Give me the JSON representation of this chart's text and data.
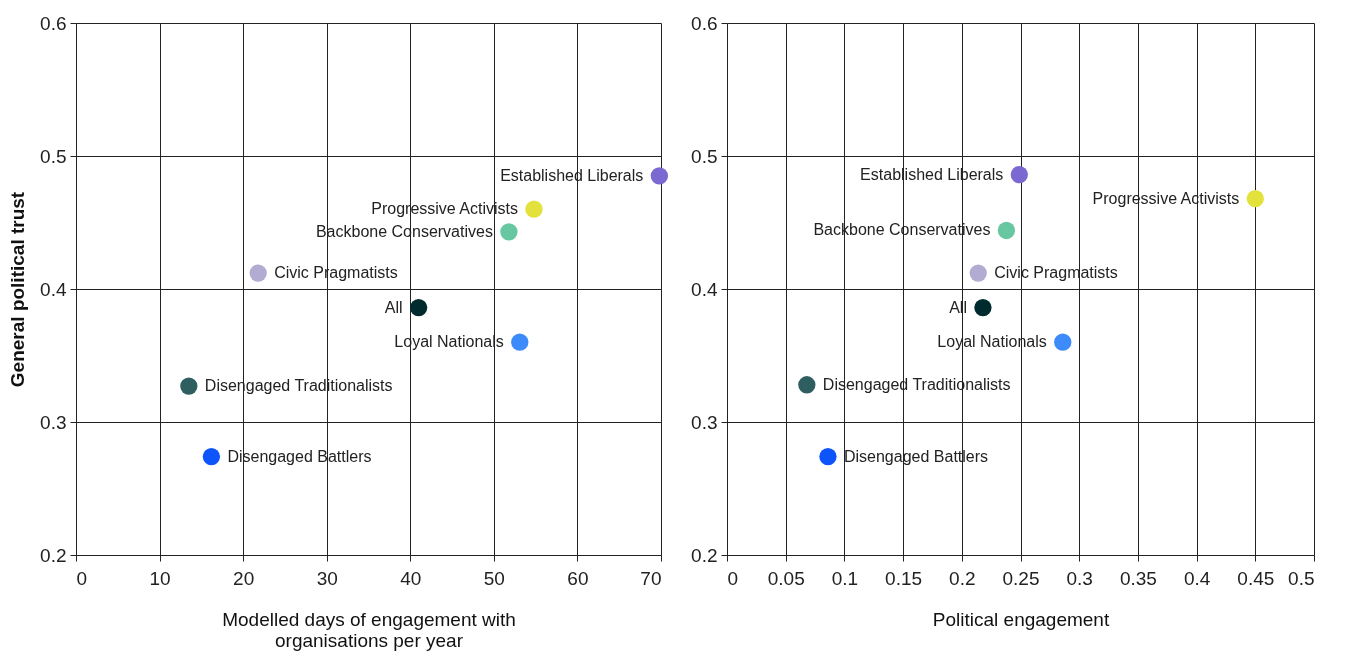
{
  "chart_data": [
    {
      "type": "scatter",
      "xlabel": "Modelled days of engagement with organisations per year",
      "ylabel": "General political trust",
      "xlim": [
        0,
        70
      ],
      "xticks": [
        0,
        10,
        20,
        30,
        40,
        50,
        60,
        70
      ],
      "ylim": [
        0.2,
        0.6
      ],
      "yticks": [
        0.2,
        0.3,
        0.4,
        0.5,
        0.6
      ],
      "grid": true,
      "marker": "circle",
      "series": [
        {
          "name": "Established Liberals",
          "color": "#7b68d0",
          "x": [
            69.8
          ],
          "values": [
            0.485
          ]
        },
        {
          "name": "Progressive Activists",
          "color": "#e3e23d",
          "x": [
            54.8
          ],
          "values": [
            0.46
          ]
        },
        {
          "name": "Backbone Conservatives",
          "color": "#66c7a0",
          "x": [
            51.8
          ],
          "values": [
            0.443
          ]
        },
        {
          "name": "Civic Pragmatists",
          "color": "#b3acd2",
          "x": [
            21.8
          ],
          "values": [
            0.412
          ]
        },
        {
          "name": "All",
          "color": "#002b2e",
          "x": [
            41.0
          ],
          "values": [
            0.386
          ]
        },
        {
          "name": "Loyal Nationals",
          "color": "#3d8bfa",
          "x": [
            53.1
          ],
          "values": [
            0.36
          ]
        },
        {
          "name": "Disengaged Traditionalists",
          "color": "#2e5e60",
          "x": [
            13.5
          ],
          "values": [
            0.327
          ]
        },
        {
          "name": "Disengaged Battlers",
          "color": "#0d54fa",
          "x": [
            16.2
          ],
          "values": [
            0.274
          ]
        }
      ]
    },
    {
      "type": "scatter",
      "xlabel": "Political engagement",
      "xlim": [
        0,
        0.5
      ],
      "xticks": [
        0,
        0.05,
        0.1,
        0.15,
        0.2,
        0.25,
        0.3,
        0.35,
        0.4,
        0.45,
        0.5
      ],
      "ylim": [
        0.2,
        0.6
      ],
      "yticks": [
        0.2,
        0.3,
        0.4,
        0.5,
        0.6
      ],
      "grid": true,
      "marker": "circle",
      "series": [
        {
          "name": "Established Liberals",
          "color": "#7b68d0",
          "x": [
            0.249
          ],
          "values": [
            0.486
          ]
        },
        {
          "name": "Progressive Activists",
          "color": "#e3e23d",
          "x": [
            0.45
          ],
          "values": [
            0.468
          ]
        },
        {
          "name": "Backbone Conservatives",
          "color": "#66c7a0",
          "x": [
            0.238
          ],
          "values": [
            0.444
          ]
        },
        {
          "name": "Civic Pragmatists",
          "color": "#b3acd2",
          "x": [
            0.214
          ],
          "values": [
            0.412
          ]
        },
        {
          "name": "All",
          "color": "#002b2e",
          "x": [
            0.218
          ],
          "values": [
            0.386
          ]
        },
        {
          "name": "Loyal Nationals",
          "color": "#3d8bfa",
          "x": [
            0.286
          ],
          "values": [
            0.36
          ]
        },
        {
          "name": "Disengaged Traditionalists",
          "color": "#2e5e60",
          "x": [
            0.068
          ],
          "values": [
            0.328
          ]
        },
        {
          "name": "Disengaged Battlers",
          "color": "#0d54fa",
          "x": [
            0.086
          ],
          "values": [
            0.274
          ]
        }
      ]
    }
  ]
}
